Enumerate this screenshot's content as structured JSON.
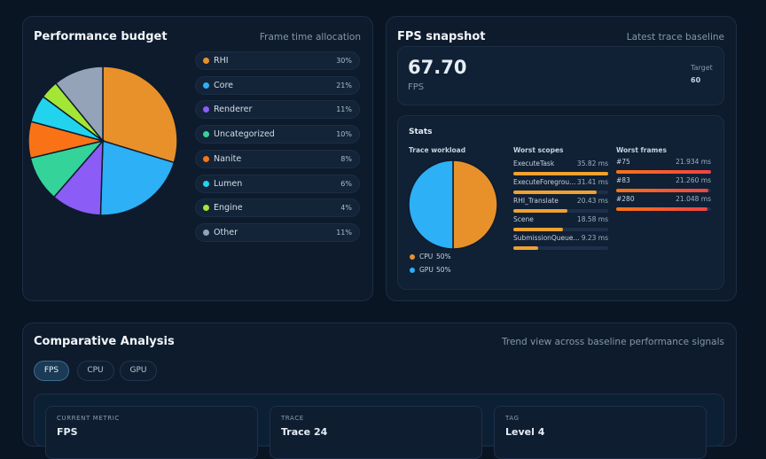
{
  "budget": {
    "title": "Performance budget",
    "subtitle": "Frame time allocation"
  },
  "snapshot": {
    "title": "FPS snapshot",
    "subtitle": "Latest trace baseline",
    "fps_value": "67.70",
    "fps_label": "FPS",
    "target_label": "Target",
    "target_value": "60",
    "stats_title": "Stats",
    "workload_title": "Trace workload"
  },
  "chart_data": [
    {
      "type": "pie",
      "categories": [
        "RHI",
        "Core",
        "Renderer",
        "Uncategorized",
        "Nanite",
        "Lumen",
        "Engine",
        "Other"
      ],
      "values": [
        30,
        21,
        11,
        10,
        8,
        6,
        4,
        11
      ],
      "value_labels": [
        "30%",
        "21%",
        "11%",
        "10%",
        "8%",
        "6%",
        "4%",
        "11%"
      ],
      "colors": [
        "#e8912a",
        "#2db0f5",
        "#8b5cf6",
        "#34d399",
        "#f97316",
        "#22d3ee",
        "#a3e635",
        "#94a3b8"
      ]
    },
    {
      "type": "pie",
      "categories": [
        "CPU",
        "GPU"
      ],
      "values": [
        50,
        50
      ],
      "value_labels": [
        "50%",
        "50%"
      ],
      "colors": [
        "#e8912a",
        "#2db0f5"
      ]
    }
  ],
  "scopes": {
    "title": "Worst scopes",
    "items": [
      {
        "name": "ExecuteTask",
        "value": 35.82,
        "label": "35.82 ms"
      },
      {
        "name": "ExecuteForegrou...",
        "value": 31.41,
        "label": "31.41 ms"
      },
      {
        "name": "RHI_Translate",
        "value": 20.43,
        "label": "20.43 ms"
      },
      {
        "name": "Scene",
        "value": 18.58,
        "label": "18.58 ms"
      },
      {
        "name": "SubmissionQueue...",
        "value": 9.23,
        "label": "9.23 ms"
      }
    ]
  },
  "frames": {
    "title": "Worst frames",
    "items": [
      {
        "name": "#75",
        "value": 21.934,
        "label": "21.934 ms"
      },
      {
        "name": "#83",
        "value": 21.26,
        "label": "21.260 ms"
      },
      {
        "name": "#280",
        "value": 21.048,
        "label": "21.048 ms"
      }
    ]
  },
  "comparative": {
    "title": "Comparative Analysis",
    "subtitle": "Trend view across baseline performance signals",
    "tabs": [
      "FPS",
      "CPU",
      "GPU"
    ],
    "cards": [
      {
        "label": "CURRENT METRIC",
        "value": "FPS"
      },
      {
        "label": "TRACE",
        "value": "Trace 24"
      },
      {
        "label": "TAG",
        "value": "Level 4"
      }
    ]
  }
}
